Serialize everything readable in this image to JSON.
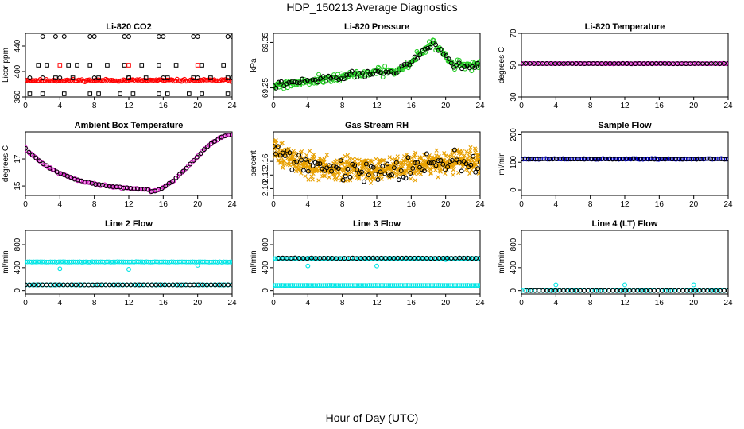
{
  "figure": {
    "title": "HDP_150213  Average Diagnostics",
    "xlabel": "Hour of Day (UTC)"
  },
  "chart_data": [
    {
      "type": "scatter",
      "title": "Li-820 CO2",
      "ylabel": "Licor ppm",
      "xlim": [
        0,
        24
      ],
      "xticks": [
        0,
        4,
        8,
        12,
        16,
        20,
        24
      ],
      "ylim": [
        360,
        460
      ],
      "yticks": [
        360,
        400,
        440
      ],
      "series": [
        {
          "color": "#ff0000",
          "marker": "circle",
          "x_range": [
            0,
            24
          ],
          "n": 140,
          "model": "const",
          "y": 386,
          "noise": 1.5,
          "seed": 11
        },
        {
          "color": "#000000",
          "marker": "circle",
          "x": [
            2,
            3.5,
            4.5,
            7.5,
            8,
            11.5,
            12,
            15.5,
            16,
            19.5,
            20,
            23.5,
            24
          ],
          "y": [
            455,
            455,
            455,
            455,
            455,
            455,
            455,
            455,
            455,
            455,
            455,
            455,
            455
          ]
        },
        {
          "color": "#000000",
          "marker": "circle",
          "x": [
            0.5,
            2,
            4,
            8,
            12,
            16,
            20,
            24
          ],
          "y": [
            390,
            390,
            390,
            390,
            390,
            390,
            390,
            390
          ]
        },
        {
          "color": "#000000",
          "marker": "square",
          "x": [
            1.5,
            2.5,
            3.5,
            5,
            5.5,
            6,
            7.5,
            8.5,
            9.5,
            11.5,
            12,
            13.5,
            14,
            15.5,
            16.5,
            17.5,
            19.5,
            20.5,
            21.5,
            23,
            23.5
          ],
          "y": [
            410,
            410,
            390,
            410,
            390,
            410,
            410,
            390,
            410,
            410,
            390,
            410,
            390,
            410,
            390,
            410,
            390,
            410,
            390,
            410,
            390
          ]
        },
        {
          "color": "#000000",
          "marker": "square",
          "x": [
            0.5,
            2,
            4.5,
            7.5,
            8.5,
            11,
            12.5,
            15.5,
            16.5,
            19,
            20.5,
            23.5
          ],
          "y": [
            365,
            365,
            365,
            365,
            365,
            365,
            365,
            365,
            365,
            365,
            365,
            365
          ]
        },
        {
          "color": "#ff0000",
          "marker": "square",
          "x": [
            4,
            12,
            20
          ],
          "y": [
            410,
            410,
            410
          ]
        }
      ]
    },
    {
      "type": "scatter",
      "title": "Li-820 Pressure",
      "ylabel": "kPa",
      "xlim": [
        0,
        24
      ],
      "xticks": [
        0,
        4,
        8,
        12,
        16,
        20,
        24
      ],
      "ylim": [
        69.23,
        69.37
      ],
      "yticks": [
        69.25,
        69.35
      ],
      "series": [
        {
          "color": "#22cc22",
          "marker": "circle",
          "x_range": [
            0,
            24
          ],
          "n": 220,
          "model": "pressure",
          "noise": 0.008,
          "seed": 21
        },
        {
          "color": "#000000",
          "marker": "circle",
          "x_range": [
            0,
            24
          ],
          "n": 80,
          "model": "pressure",
          "noise": 0.006,
          "seed": 22
        }
      ]
    },
    {
      "type": "scatter",
      "title": "Li-820 Temperature",
      "ylabel": "degrees C",
      "xlim": [
        0,
        24
      ],
      "xticks": [
        0,
        4,
        8,
        12,
        16,
        20,
        24
      ],
      "ylim": [
        30,
        70
      ],
      "yticks": [
        30,
        50,
        70
      ],
      "series": [
        {
          "color": "#dd22cc",
          "marker": "circle",
          "x_range": [
            0,
            24
          ],
          "n": 100,
          "model": "const",
          "y": 51,
          "noise": 0.1,
          "seed": 31
        },
        {
          "color": "#000000",
          "marker": "circle",
          "x_range": [
            0,
            24
          ],
          "n": 50,
          "model": "const",
          "y": 51,
          "noise": 0.1,
          "seed": 32
        }
      ]
    },
    {
      "type": "scatter",
      "title": "Ambient Box Temperature",
      "ylabel": "degrees C",
      "xlim": [
        0,
        24
      ],
      "xticks": [
        0,
        4,
        8,
        12,
        16,
        20,
        24
      ],
      "ylim": [
        14.3,
        19.0
      ],
      "yticks": [
        15,
        17
      ],
      "series": [
        {
          "color": "#dd22cc",
          "marker": "circle",
          "x_range": [
            0,
            24
          ],
          "n": 100,
          "model": "ambient",
          "noise": 0.05,
          "seed": 41
        },
        {
          "color": "#000000",
          "marker": "circle",
          "x_range": [
            0,
            24
          ],
          "n": 60,
          "model": "ambient",
          "noise": 0.03,
          "seed": 42
        }
      ]
    },
    {
      "type": "scatter",
      "title": "Gas Stream RH",
      "ylabel": "percent",
      "xlim": [
        0,
        24
      ],
      "xticks": [
        0,
        4,
        8,
        12,
        16,
        20,
        24
      ],
      "ylim": [
        2.085,
        2.225
      ],
      "yticks": [
        2.1,
        2.13,
        2.16
      ],
      "series": [
        {
          "color": "#e8a000",
          "marker": "x",
          "x_range": [
            0,
            24
          ],
          "n": 650,
          "model": "rh",
          "noise": 0.022,
          "seed": 51
        },
        {
          "color": "#000000",
          "marker": "circle",
          "x_range": [
            0,
            24
          ],
          "n": 90,
          "model": "rh",
          "noise": 0.02,
          "seed": 52
        }
      ]
    },
    {
      "type": "scatter",
      "title": "Sample Flow",
      "ylabel": "ml/min",
      "xlim": [
        0,
        24
      ],
      "xticks": [
        0,
        4,
        8,
        12,
        16,
        20,
        24
      ],
      "ylim": [
        -20,
        210
      ],
      "yticks": [
        0,
        100,
        200
      ],
      "series": [
        {
          "color": "#0000cc",
          "marker": "circle",
          "x_range": [
            0,
            24
          ],
          "n": 120,
          "model": "const",
          "y": 112,
          "noise": 1.5,
          "seed": 61
        },
        {
          "color": "#000000",
          "marker": "circle",
          "x_range": [
            0,
            24
          ],
          "n": 60,
          "model": "const",
          "y": 112,
          "noise": 1.0,
          "seed": 62
        }
      ]
    },
    {
      "type": "scatter",
      "title": "Line 2 Flow",
      "ylabel": "ml/min",
      "xlim": [
        0,
        24
      ],
      "xticks": [
        0,
        4,
        8,
        12,
        16,
        20,
        24
      ],
      "ylim": [
        -60,
        1050
      ],
      "yticks": [
        0,
        400,
        800
      ],
      "series": [
        {
          "color": "#00e5e5",
          "marker": "circle",
          "x_range": [
            0,
            24
          ],
          "n": 100,
          "model": "const",
          "y": 500,
          "noise": 3,
          "seed": 71
        },
        {
          "color": "#00e5e5",
          "marker": "circle",
          "x": [
            4,
            12,
            20
          ],
          "y": [
            380,
            370,
            440
          ]
        },
        {
          "color": "#00e5e5",
          "marker": "circle",
          "x_range": [
            0,
            24
          ],
          "n": 60,
          "model": "const",
          "y": 100,
          "noise": 1,
          "seed": 72
        },
        {
          "color": "#000000",
          "marker": "circle",
          "x_range": [
            0,
            24
          ],
          "n": 50,
          "model": "const",
          "y": 100,
          "noise": 1,
          "seed": 73
        }
      ]
    },
    {
      "type": "scatter",
      "title": "Line 3 Flow",
      "ylabel": "ml/min",
      "xlim": [
        0,
        24
      ],
      "xticks": [
        0,
        4,
        8,
        12,
        16,
        20,
        24
      ],
      "ylim": [
        -60,
        1050
      ],
      "yticks": [
        0,
        400,
        800
      ],
      "series": [
        {
          "color": "#00e5e5",
          "marker": "circle",
          "x_range": [
            0,
            24
          ],
          "n": 100,
          "model": "const",
          "y": 560,
          "noise": 4,
          "seed": 81
        },
        {
          "color": "#00e5e5",
          "marker": "circle",
          "x": [
            4,
            12,
            20
          ],
          "y": [
            430,
            430,
            540
          ]
        },
        {
          "color": "#00e5e5",
          "marker": "circle",
          "x_range": [
            0,
            24
          ],
          "n": 100,
          "model": "const",
          "y": 90,
          "noise": 1,
          "seed": 82
        },
        {
          "color": "#000000",
          "marker": "circle",
          "x_range": [
            0.6,
            24
          ],
          "n": 50,
          "model": "const",
          "y": 565,
          "noise": 4,
          "seed": 83
        }
      ]
    },
    {
      "type": "scatter",
      "title": "Line 4 (LT) Flow",
      "ylabel": "ml/min",
      "xlim": [
        0,
        24
      ],
      "xticks": [
        0,
        4,
        8,
        12,
        16,
        20,
        24
      ],
      "ylim": [
        -60,
        1050
      ],
      "yticks": [
        0,
        400,
        800
      ],
      "series": [
        {
          "color": "#00e5e5",
          "marker": "circle",
          "x_range": [
            0,
            24
          ],
          "n": 60,
          "model": "const",
          "y": 0,
          "noise": 1,
          "seed": 91
        },
        {
          "color": "#00e5e5",
          "marker": "circle",
          "x": [
            4,
            12,
            20
          ],
          "y": [
            100,
            100,
            100
          ]
        },
        {
          "color": "#000000",
          "marker": "circle",
          "x_range": [
            0.6,
            24
          ],
          "n": 50,
          "model": "const",
          "y": 0,
          "noise": 1,
          "seed": 92
        }
      ]
    }
  ]
}
